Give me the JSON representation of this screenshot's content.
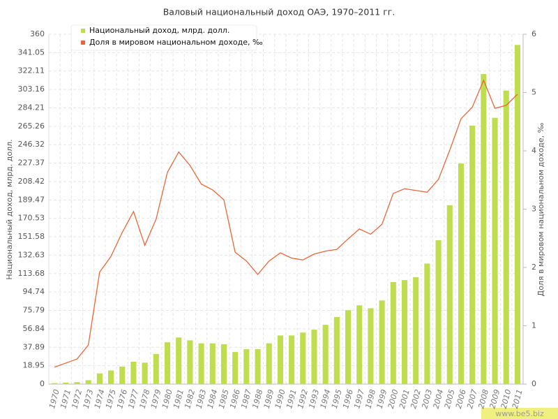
{
  "chart_data": {
    "type": "bar",
    "title": "Валовый национальный доход ОАЭ, 1970–2011 гг.",
    "y_label": "Национальный доход, млрд. долл.",
    "y2_label": "Доля в мировом национальном доходе, ‰",
    "watermark": "www.be5.biz",
    "categories": [
      "1970",
      "1971",
      "1972",
      "1973",
      "1974",
      "1975",
      "1976",
      "1977",
      "1978",
      "1979",
      "1980",
      "1981",
      "1982",
      "1983",
      "1984",
      "1985",
      "1986",
      "1987",
      "1988",
      "1989",
      "1990",
      "1991",
      "1992",
      "1993",
      "1994",
      "1995",
      "1996",
      "1997",
      "1998",
      "1999",
      "2000",
      "2001",
      "2002",
      "2003",
      "2004",
      "2005",
      "2006",
      "2007",
      "2008",
      "2009",
      "2010",
      "2011"
    ],
    "series": [
      {
        "name": "Национальный доход, млрд. долл.",
        "type": "bar",
        "color": "#bedd4f",
        "axis": "y",
        "values": [
          1,
          1.5,
          2,
          4,
          11,
          14,
          18,
          23,
          22,
          31,
          43,
          48,
          45,
          42,
          42,
          41,
          33,
          36,
          36,
          42,
          50,
          50,
          53,
          56,
          61,
          69,
          76,
          81,
          78,
          86,
          105,
          107,
          110,
          124,
          148,
          184,
          227,
          266,
          319,
          274,
          302,
          349
        ]
      },
      {
        "name": "Доля в мировом национальном доходе, ‰",
        "type": "line",
        "color": "#e8673a",
        "axis": "y2",
        "values": [
          0.29,
          0.36,
          0.43,
          0.67,
          1.92,
          2.19,
          2.6,
          2.96,
          2.38,
          2.83,
          3.63,
          3.98,
          3.75,
          3.43,
          3.33,
          3.16,
          2.26,
          2.11,
          1.88,
          2.11,
          2.25,
          2.16,
          2.13,
          2.23,
          2.28,
          2.31,
          2.49,
          2.66,
          2.57,
          2.74,
          3.27,
          3.35,
          3.32,
          3.29,
          3.51,
          4.01,
          4.55,
          4.75,
          5.21,
          4.73,
          4.78,
          4.97
        ]
      }
    ],
    "ylim": [
      0,
      360
    ],
    "yticks": [
      0,
      18.95,
      37.89,
      56.84,
      75.79,
      94.74,
      113.68,
      132.63,
      151.58,
      170.53,
      189.47,
      208.42,
      227.37,
      246.32,
      265.26,
      284.21,
      303.16,
      322.11,
      341.05,
      360
    ],
    "y2lim": [
      0,
      6
    ],
    "y2ticks": [
      0,
      1,
      2,
      3,
      4,
      5,
      6
    ],
    "grid": true,
    "legend": "top-left"
  }
}
